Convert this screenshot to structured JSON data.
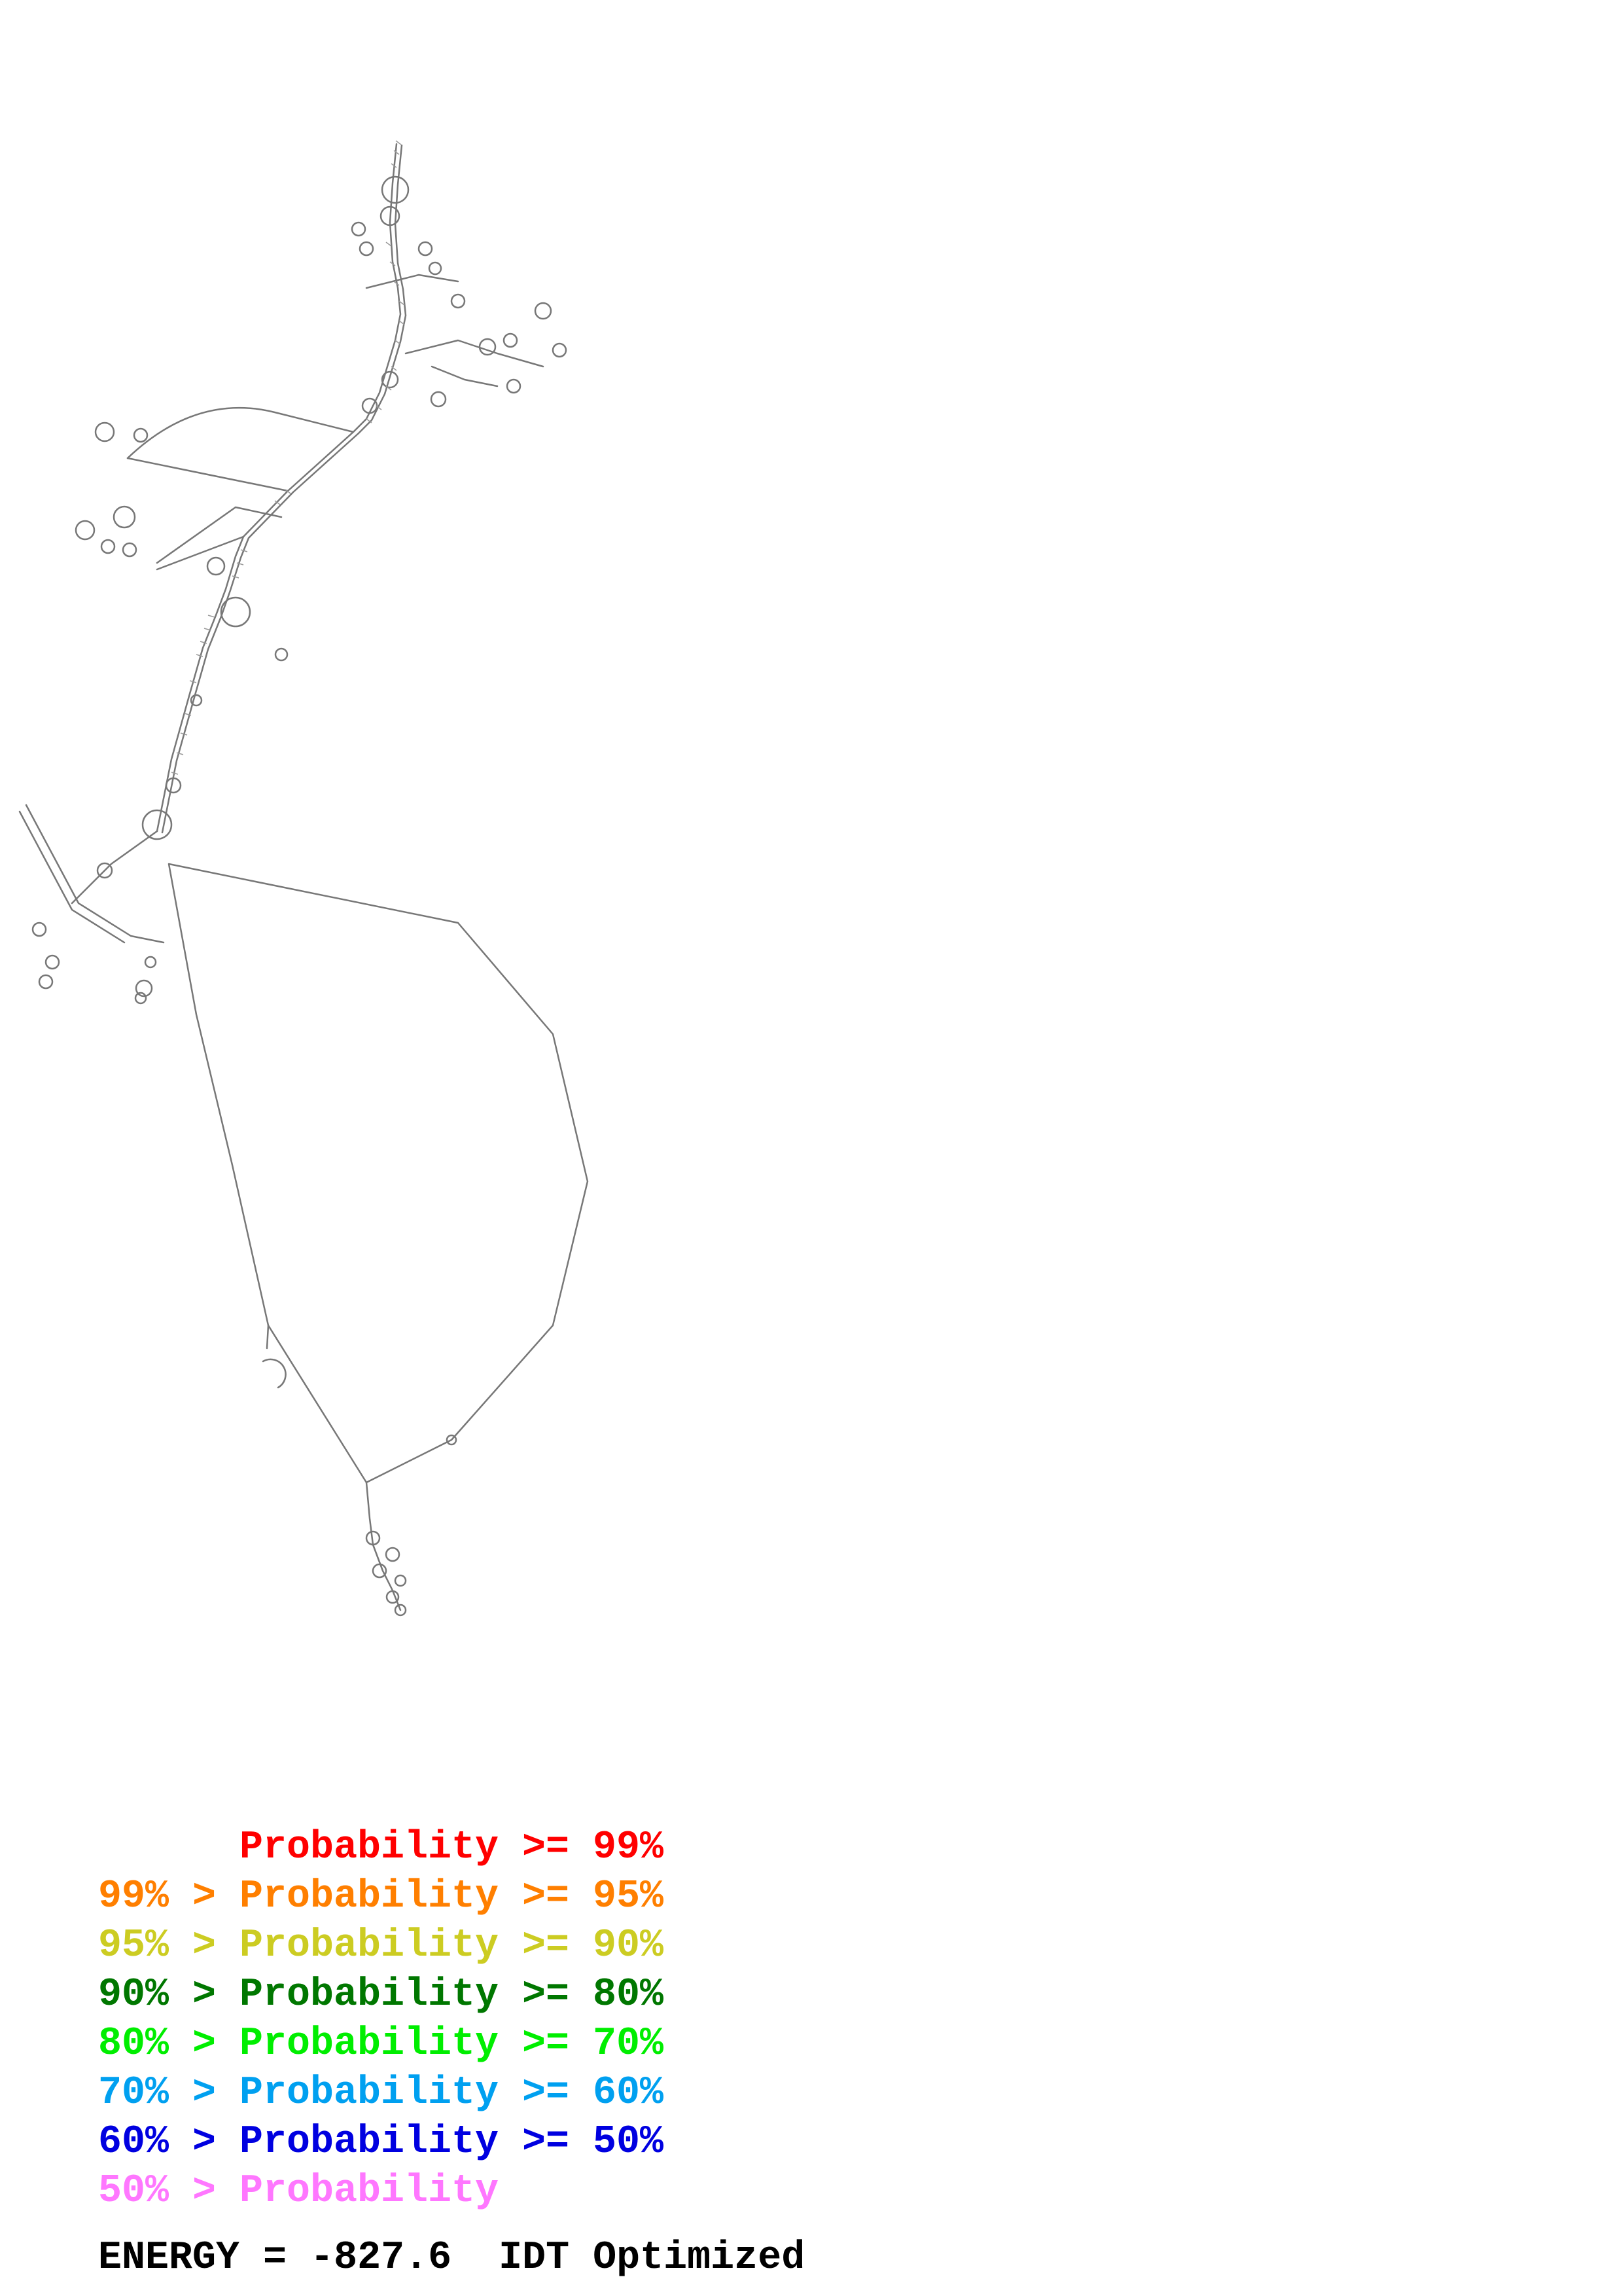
{
  "legend": {
    "rows": [
      {
        "prefix": "",
        "gt": "",
        "label": "Probability",
        "ge": ">=",
        "threshold": "99%",
        "color": "#ff0000"
      },
      {
        "prefix": "99%",
        "gt": ">",
        "label": "Probability",
        "ge": ">=",
        "threshold": "95%",
        "color": "#ff7f00"
      },
      {
        "prefix": "95%",
        "gt": ">",
        "label": "Probability",
        "ge": ">=",
        "threshold": "90%",
        "color": "#cccc22"
      },
      {
        "prefix": "90%",
        "gt": ">",
        "label": "Probability",
        "ge": ">=",
        "threshold": "80%",
        "color": "#007700"
      },
      {
        "prefix": "80%",
        "gt": ">",
        "label": "Probability",
        "ge": ">=",
        "threshold": "70%",
        "color": "#00ee00"
      },
      {
        "prefix": "70%",
        "gt": ">",
        "label": "Probability",
        "ge": ">=",
        "threshold": "60%",
        "color": "#00a0f0"
      },
      {
        "prefix": "60%",
        "gt": ">",
        "label": "Probability",
        "ge": ">=",
        "threshold": "50%",
        "color": "#0000e0"
      },
      {
        "prefix": "50%",
        "gt": ">",
        "label": "Probability",
        "ge": "",
        "threshold": "",
        "color": "#ff77ff"
      }
    ]
  },
  "footer": {
    "energy_label": "ENERGY =",
    "energy_value": "-827.6",
    "method": "IDT Optimized"
  },
  "structure": {
    "stroke_color": "#777777",
    "pair_color": "#007700"
  }
}
